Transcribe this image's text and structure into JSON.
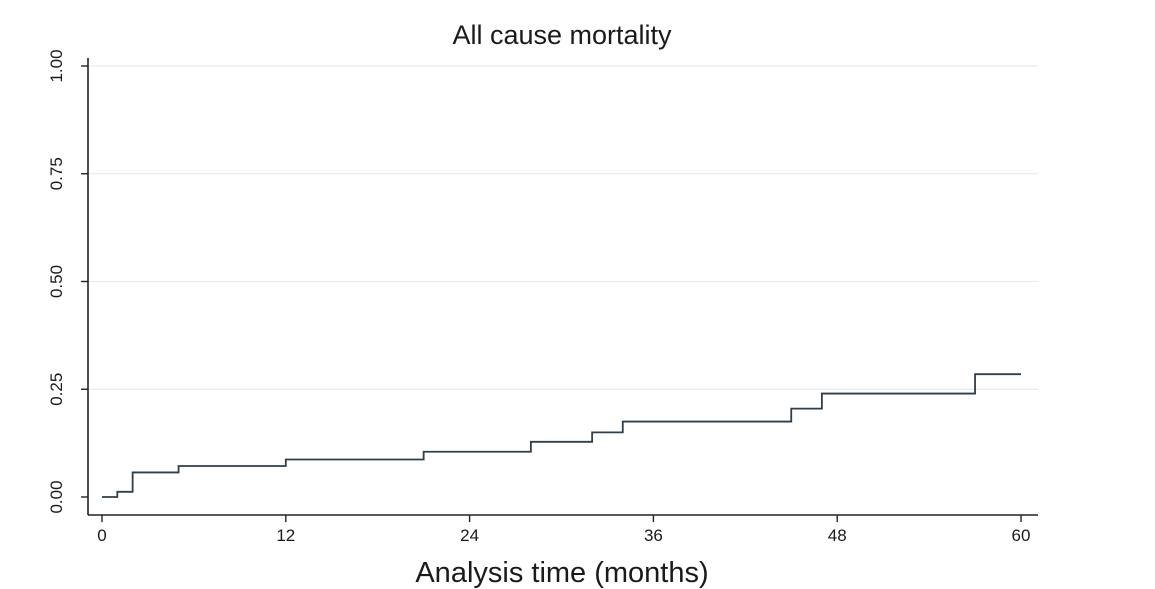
{
  "chart_data": {
    "type": "line",
    "step": true,
    "title": "All cause mortality",
    "xlabel": "Analysis time (months)",
    "ylabel": "",
    "xlim": [
      0,
      60
    ],
    "ylim": [
      0,
      1
    ],
    "xticks": [
      0,
      12,
      24,
      36,
      48,
      60
    ],
    "xtick_labels": [
      "0",
      "12",
      "24",
      "36",
      "48",
      "60"
    ],
    "yticks": [
      0,
      0.25,
      0.5,
      0.75,
      1.0
    ],
    "ytick_labels": [
      "0.00",
      "0.25",
      "0.50",
      "0.75",
      "1.00"
    ],
    "grid": "horizontal",
    "series": [
      {
        "x": [
          0,
          1,
          2,
          5,
          12,
          21,
          28,
          32,
          34,
          45,
          47,
          57,
          60
        ],
        "values": [
          0.0,
          0.012,
          0.057,
          0.072,
          0.087,
          0.105,
          0.128,
          0.15,
          0.175,
          0.205,
          0.24,
          0.285,
          0.285
        ]
      }
    ],
    "colors": {
      "line": "#2f3e4c",
      "axis": "#222222",
      "grid": "#e6ecf0"
    }
  }
}
